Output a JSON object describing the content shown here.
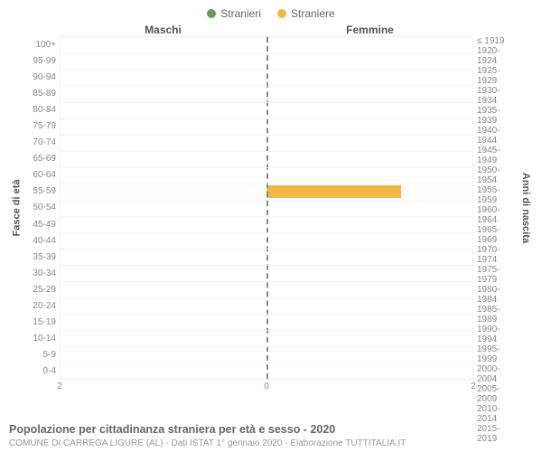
{
  "chart": {
    "type": "population-pyramid",
    "legend": [
      {
        "label": "Stranieri",
        "color": "#6a9a5b"
      },
      {
        "label": "Straniere",
        "color": "#f0b840"
      }
    ],
    "panels": {
      "left": "Maschi",
      "right": "Femmine"
    },
    "y_axis_left": {
      "title": "Fasce di età"
    },
    "y_axis_right": {
      "title": "Anni di nascita"
    },
    "age_bands": [
      "100+",
      "95-99",
      "90-94",
      "85-89",
      "80-84",
      "75-79",
      "70-74",
      "65-69",
      "60-64",
      "55-59",
      "50-54",
      "45-49",
      "40-44",
      "35-39",
      "30-34",
      "25-29",
      "20-24",
      "15-19",
      "10-14",
      "5-9",
      "0-4"
    ],
    "birth_years": [
      "≤ 1919",
      "1920-1924",
      "1925-1929",
      "1930-1934",
      "1935-1939",
      "1940-1944",
      "1945-1949",
      "1950-1954",
      "1955-1959",
      "1960-1964",
      "1965-1969",
      "1970-1974",
      "1975-1979",
      "1980-1984",
      "1985-1989",
      "1990-1994",
      "1995-1999",
      "2000-2004",
      "2005-2009",
      "2010-2014",
      "2015-2019"
    ],
    "values_male": [
      0,
      0,
      0,
      0,
      0,
      0,
      0,
      0,
      0,
      0,
      0,
      0,
      0,
      0,
      0,
      0,
      0,
      0,
      0,
      0,
      0
    ],
    "values_female": [
      0,
      0,
      0,
      0,
      0,
      0,
      0,
      0,
      0,
      1.3,
      0,
      0,
      0,
      0,
      0,
      0,
      0,
      0,
      0,
      0,
      0
    ],
    "x_axis": {
      "max": 2,
      "ticks": [
        2,
        0,
        2
      ],
      "tick_positions_pct": [
        0,
        50,
        100
      ]
    },
    "colors": {
      "male_bar": "#6a9a5b",
      "female_bar": "#f0b840",
      "grid": "#f4f4f4",
      "center_line": "#888888",
      "text": "#666666",
      "background": "#ffffff"
    },
    "fonts": {
      "tick_size_pt": 10,
      "label_size_pt": 11,
      "title_size_pt": 12
    }
  },
  "caption": {
    "title": "Popolazione per cittadinanza straniera per età e sesso - 2020",
    "subtitle": "COMUNE DI CARREGA LIGURE (AL) - Dati ISTAT 1° gennaio 2020 - Elaborazione TUTTITALIA.IT"
  }
}
